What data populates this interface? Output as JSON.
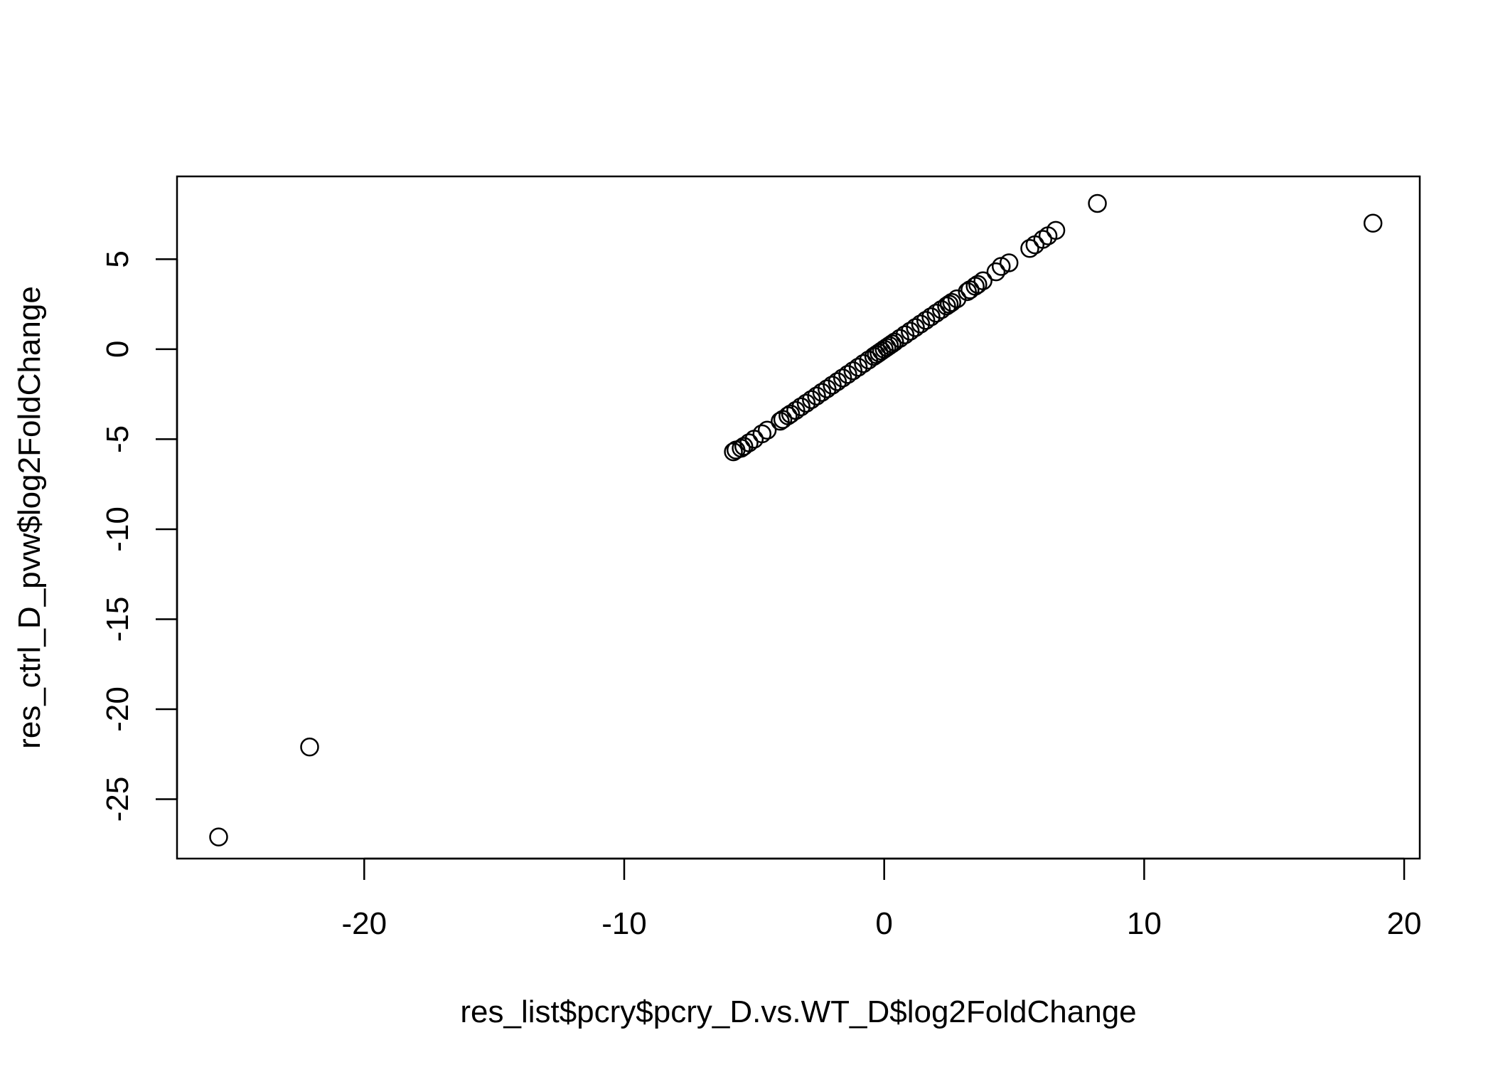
{
  "chart_data": {
    "type": "scatter",
    "title": "",
    "xlabel": "res_list$pcry$pcry_D.vs.WT_D$log2FoldChange",
    "ylabel": "res_ctrl_D_pvw$log2FoldChange",
    "xlim": [
      -27.2,
      20.6
    ],
    "ylim": [
      -28.3,
      9.6
    ],
    "xticks": [
      -20,
      -10,
      0,
      10,
      20
    ],
    "yticks": [
      -25,
      -20,
      -15,
      -10,
      -5,
      0,
      5
    ],
    "xtick_labels": [
      "-20",
      "-10",
      "0",
      "10",
      "20"
    ],
    "ytick_labels": [
      "-25",
      "-20",
      "-15",
      "-10",
      "-5",
      "0",
      "5"
    ],
    "grid": false,
    "marker": "open-circle",
    "series": [
      {
        "x": [
          -25.6,
          -22.1,
          18.8,
          8.2,
          6.6,
          6.3,
          6.1,
          5.8,
          5.6,
          4.8,
          4.5,
          4.3,
          3.8,
          3.6,
          3.5,
          3.3,
          3.2,
          2.8,
          2.6,
          2.5,
          2.4,
          2.2,
          2.0,
          1.8,
          1.6,
          1.4,
          1.2,
          1.0,
          0.8,
          0.6,
          0.4,
          0.3,
          0.2,
          0.1,
          0.0,
          -0.1,
          -0.2,
          -0.3,
          -0.4,
          -0.6,
          -0.8,
          -1.0,
          -1.2,
          -1.4,
          -1.6,
          -1.8,
          -2.0,
          -2.2,
          -2.4,
          -2.6,
          -2.8,
          -3.0,
          -3.2,
          -3.4,
          -3.6,
          -3.7,
          -3.9,
          -4.0,
          -4.5,
          -4.7,
          -5.0,
          -5.2,
          -5.4,
          -5.5,
          -5.7,
          -5.8
        ],
        "y": [
          -27.1,
          -22.1,
          7.0,
          8.1,
          6.6,
          6.3,
          6.1,
          5.8,
          5.6,
          4.8,
          4.6,
          4.3,
          3.8,
          3.6,
          3.5,
          3.3,
          3.2,
          2.8,
          2.6,
          2.5,
          2.4,
          2.2,
          2.0,
          1.8,
          1.6,
          1.4,
          1.2,
          1.0,
          0.8,
          0.6,
          0.4,
          0.3,
          0.2,
          0.1,
          0.0,
          -0.1,
          -0.2,
          -0.3,
          -0.4,
          -0.6,
          -0.8,
          -1.0,
          -1.2,
          -1.4,
          -1.6,
          -1.8,
          -2.0,
          -2.2,
          -2.4,
          -2.6,
          -2.8,
          -3.0,
          -3.2,
          -3.4,
          -3.6,
          -3.7,
          -3.9,
          -4.0,
          -4.5,
          -4.7,
          -5.0,
          -5.2,
          -5.4,
          -5.5,
          -5.6,
          -5.7
        ]
      }
    ]
  }
}
